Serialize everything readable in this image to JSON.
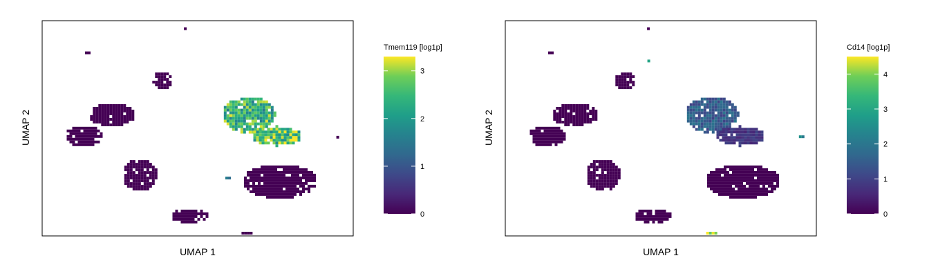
{
  "chart_data": [
    {
      "type": "heatmap",
      "title": "",
      "xlabel": "UMAP 1",
      "ylabel": "UMAP 2",
      "colorbar": {
        "title": "Tmem119 [log1p]",
        "range": [
          0,
          3.3
        ],
        "ticks": [
          0,
          1,
          2,
          3
        ],
        "tick_labels": [
          "0",
          "1",
          "2",
          "3"
        ],
        "colormap": "viridis"
      },
      "clusters": [
        {
          "name": "top-left-small",
          "cx": 0.142,
          "cy": 0.86,
          "rx": 0.013,
          "ry": 0.01,
          "value": 0
        },
        {
          "name": "top-stub",
          "cx": 0.455,
          "cy": 0.97,
          "rx": 0.008,
          "ry": 0.012,
          "value": 0
        },
        {
          "name": "upper-blob",
          "cx": 0.38,
          "cy": 0.73,
          "rx": 0.035,
          "ry": 0.042,
          "value": 0
        },
        {
          "name": "left-mid",
          "cx": 0.22,
          "cy": 0.57,
          "rx": 0.075,
          "ry": 0.055,
          "value": 0
        },
        {
          "name": "left-far",
          "cx": 0.13,
          "cy": 0.47,
          "rx": 0.06,
          "ry": 0.05,
          "value": 0
        },
        {
          "name": "left-lower",
          "cx": 0.31,
          "cy": 0.29,
          "rx": 0.055,
          "ry": 0.075,
          "value": 0
        },
        {
          "name": "bottom-right",
          "cx": 0.76,
          "cy": 0.26,
          "rx": 0.12,
          "ry": 0.08,
          "value": 0
        },
        {
          "name": "bottom-mid",
          "cx": 0.47,
          "cy": 0.1,
          "rx": 0.06,
          "ry": 0.035,
          "value": 0
        },
        {
          "name": "bottom-small",
          "cx": 0.65,
          "cy": 0.02,
          "rx": 0.018,
          "ry": 0.012,
          "value": 0
        },
        {
          "name": "right-tiny",
          "cx": 0.945,
          "cy": 0.47,
          "rx": 0.008,
          "ry": 0.008,
          "value": 0
        },
        {
          "name": "micro-a",
          "cx": 0.59,
          "cy": 0.28,
          "rx": 0.01,
          "ry": 0.008,
          "value": 1.4
        },
        {
          "name": "micro-b",
          "cx": 0.36,
          "cy": 0.42,
          "rx": 0.005,
          "ry": 0.005,
          "value": 0
        },
        {
          "name": "microglia-main",
          "cx": 0.66,
          "cy": 0.57,
          "rx": 0.085,
          "ry": 0.085,
          "value": 2.4
        },
        {
          "name": "microglia-ext",
          "cx": 0.75,
          "cy": 0.47,
          "rx": 0.08,
          "ry": 0.045,
          "value": 2.7
        }
      ]
    },
    {
      "type": "heatmap",
      "title": "",
      "xlabel": "UMAP 1",
      "ylabel": "UMAP 2",
      "colorbar": {
        "title": "Cd14 [log1p]",
        "range": [
          0,
          4.5
        ],
        "ticks": [
          0,
          1,
          2,
          3,
          4
        ],
        "tick_labels": [
          "0",
          "1",
          "2",
          "3",
          "4"
        ],
        "colormap": "viridis"
      },
      "clusters": [
        {
          "name": "top-left-small",
          "cx": 0.142,
          "cy": 0.86,
          "rx": 0.013,
          "ry": 0.01,
          "value": 0
        },
        {
          "name": "top-stub",
          "cx": 0.455,
          "cy": 0.97,
          "rx": 0.008,
          "ry": 0.012,
          "value": 0
        },
        {
          "name": "top-hot",
          "cx": 0.455,
          "cy": 0.82,
          "rx": 0.007,
          "ry": 0.012,
          "value": 3.5
        },
        {
          "name": "upper-blob",
          "cx": 0.38,
          "cy": 0.73,
          "rx": 0.035,
          "ry": 0.042,
          "value": 0
        },
        {
          "name": "left-mid",
          "cx": 0.22,
          "cy": 0.57,
          "rx": 0.075,
          "ry": 0.055,
          "value": 0
        },
        {
          "name": "left-far",
          "cx": 0.13,
          "cy": 0.47,
          "rx": 0.06,
          "ry": 0.05,
          "value": 0
        },
        {
          "name": "left-lower",
          "cx": 0.31,
          "cy": 0.29,
          "rx": 0.055,
          "ry": 0.075,
          "value": 0
        },
        {
          "name": "bottom-right",
          "cx": 0.76,
          "cy": 0.26,
          "rx": 0.12,
          "ry": 0.08,
          "value": 0
        },
        {
          "name": "bottom-mid",
          "cx": 0.47,
          "cy": 0.1,
          "rx": 0.06,
          "ry": 0.035,
          "value": 0
        },
        {
          "name": "bottom-hot",
          "cx": 0.655,
          "cy": 0.02,
          "rx": 0.018,
          "ry": 0.012,
          "value": 3.8
        },
        {
          "name": "right-tiny",
          "cx": 0.945,
          "cy": 0.47,
          "rx": 0.01,
          "ry": 0.01,
          "value": 2.2
        },
        {
          "name": "micro-a",
          "cx": 0.41,
          "cy": 0.43,
          "rx": 0.006,
          "ry": 0.006,
          "value": 3.5
        },
        {
          "name": "micro-b",
          "cx": 0.465,
          "cy": 0.38,
          "rx": 0.006,
          "ry": 0.006,
          "value": 3.8
        },
        {
          "name": "microglia-main",
          "cx": 0.66,
          "cy": 0.57,
          "rx": 0.085,
          "ry": 0.085,
          "value": 1.5
        },
        {
          "name": "microglia-ext",
          "cx": 0.75,
          "cy": 0.47,
          "rx": 0.08,
          "ry": 0.045,
          "value": 0.8
        }
      ]
    }
  ]
}
